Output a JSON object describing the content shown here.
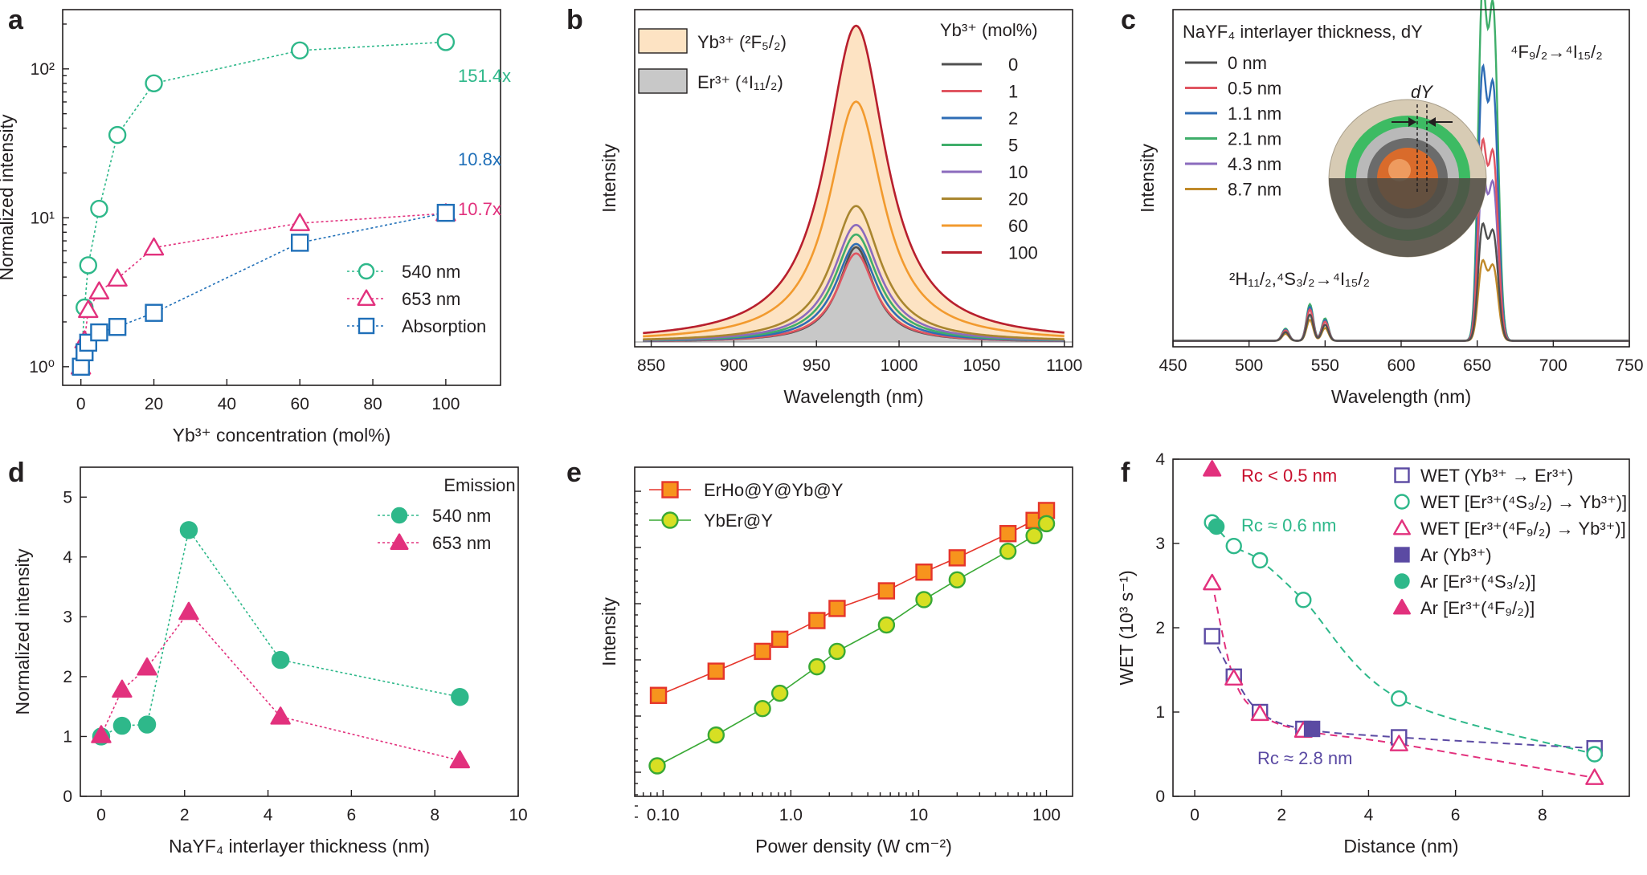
{
  "panels": {
    "a": {
      "label": "a"
    },
    "b": {
      "label": "b"
    },
    "c": {
      "label": "c"
    },
    "d": {
      "label": "d"
    },
    "e": {
      "label": "e"
    },
    "f": {
      "label": "f"
    }
  },
  "colors": {
    "green": "#2eb88a",
    "pink": "#e2317d",
    "blue": "#1f6fb8",
    "purple": "#5b4aa3",
    "orange_fill": "#fde3c3",
    "gray_fill": "#c8c8c8",
    "e_square": "#f7941d",
    "e_square_edge": "#e5352b",
    "e_circle": "#d7df23",
    "e_circle_edge": "#39a935"
  },
  "chart_data": [
    {
      "id": "a",
      "type": "scatter",
      "xlabel": "Yb³⁺ concentration (mol%)",
      "ylabel": "Normalized intensity",
      "xlim": [
        -5,
        115
      ],
      "ylim_log": [
        0.75,
        250
      ],
      "log_y": true,
      "x_ticks": [
        0,
        20,
        40,
        60,
        80,
        100
      ],
      "y_ticks": [
        {
          "value": 1,
          "label": "10⁰"
        },
        {
          "value": 10,
          "label": "10¹"
        },
        {
          "value": 100,
          "label": "10²"
        }
      ],
      "series": [
        {
          "name": "540 nm",
          "marker": "circle",
          "color": "#2eb88a",
          "x": [
            0,
            1,
            2,
            5,
            10,
            20,
            60,
            100
          ],
          "y": [
            1.0,
            2.5,
            4.8,
            11.5,
            36,
            80,
            133,
            151.4
          ]
        },
        {
          "name": "653 nm",
          "marker": "triangle",
          "color": "#e2317d",
          "x": [
            0,
            1,
            2,
            5,
            10,
            20,
            60,
            100
          ],
          "y": [
            1.0,
            1.5,
            2.4,
            3.2,
            3.9,
            6.3,
            9.2,
            10.7
          ]
        },
        {
          "name": "Absorption",
          "marker": "square",
          "color": "#1f6fb8",
          "x": [
            0,
            1,
            2,
            5,
            10,
            20,
            60,
            100
          ],
          "y": [
            1.0,
            1.25,
            1.45,
            1.7,
            1.85,
            2.3,
            6.8,
            10.8
          ]
        }
      ],
      "annotations": [
        {
          "text": "151.4x",
          "color": "#2eb88a"
        },
        {
          "text": "10.8x",
          "color": "#1f6fb8"
        },
        {
          "text": "10.7x",
          "color": "#e2317d"
        }
      ]
    },
    {
      "id": "b",
      "type": "line",
      "xlabel": "Wavelength (nm)",
      "ylabel": "Intensity",
      "xlim": [
        840,
        1105
      ],
      "x_ticks": [
        850,
        900,
        950,
        1000,
        1050,
        1100
      ],
      "legend_title": "Yb³⁺ (mol%)",
      "fill_legend": [
        {
          "label": "Yb³⁺ (²F₅/₂)",
          "fill": "#fde3c3"
        },
        {
          "label": "Er³⁺ (⁴I₁₁/₂)",
          "fill": "#c8c8c8"
        }
      ],
      "peak_center": 974,
      "series": [
        {
          "name": "0",
          "color": "#505050",
          "peak": 0.3,
          "gamma": 13
        },
        {
          "name": "1",
          "color": "#e05561",
          "peak": 0.28,
          "gamma": 14
        },
        {
          "name": "2",
          "color": "#2f6db5",
          "peak": 0.31,
          "gamma": 15
        },
        {
          "name": "5",
          "color": "#3fae6a",
          "peak": 0.34,
          "gamma": 16
        },
        {
          "name": "10",
          "color": "#8b6bbd",
          "peak": 0.37,
          "gamma": 17
        },
        {
          "name": "20",
          "color": "#a9862f",
          "peak": 0.43,
          "gamma": 18
        },
        {
          "name": "60",
          "color": "#f29a2e",
          "peak": 0.76,
          "gamma": 20
        },
        {
          "name": "100",
          "color": "#b81f2d",
          "peak": 1.0,
          "gamma": 22
        }
      ]
    },
    {
      "id": "c",
      "type": "line",
      "xlabel": "Wavelength (nm)",
      "ylabel": "Intensity",
      "xlim": [
        450,
        750
      ],
      "x_ticks": [
        450,
        500,
        550,
        600,
        650,
        700,
        750
      ],
      "legend_title": "NaYF₄ interlayer thickness, dY",
      "peak_labels": [
        "⁴F₉/₂→⁴I₁₅/₂",
        "²H₁₁/₂,⁴S₃/₂→⁴I₁₅/₂"
      ],
      "inset_label": "dY",
      "series": [
        {
          "name": "0 nm",
          "color": "#505050",
          "red": 0.32,
          "green": 0.1
        },
        {
          "name": "0.5 nm",
          "color": "#e05561",
          "red": 0.55,
          "green": 0.12
        },
        {
          "name": "1.1 nm",
          "color": "#2f6db5",
          "red": 0.75,
          "green": 0.13
        },
        {
          "name": "2.1 nm",
          "color": "#3fae6a",
          "red": 0.98,
          "green": 0.14
        },
        {
          "name": "4.3 nm",
          "color": "#8b6bbd",
          "red": 0.46,
          "green": 0.12
        },
        {
          "name": "8.7 nm",
          "color": "#c08a2a",
          "red": 0.22,
          "green": 0.08
        }
      ]
    },
    {
      "id": "d",
      "type": "scatter",
      "xlabel": "NaYF₄ interlayer thickness (nm)",
      "ylabel": "Normalized intensity",
      "xlim": [
        -0.5,
        10
      ],
      "ylim": [
        0,
        5.5
      ],
      "x_ticks": [
        0,
        2,
        4,
        6,
        8,
        10
      ],
      "y_ticks": [
        0,
        1,
        2,
        3,
        4,
        5
      ],
      "legend_title": "Emission",
      "series": [
        {
          "name": "540 nm",
          "marker": "circle",
          "color": "#2eb88a",
          "x": [
            0,
            0.5,
            1.1,
            2.1,
            4.3,
            8.6
          ],
          "y": [
            1.0,
            1.18,
            1.2,
            4.45,
            2.28,
            1.66
          ]
        },
        {
          "name": "653 nm",
          "marker": "triangle",
          "color": "#e2317d",
          "x": [
            0,
            0.5,
            1.1,
            2.1,
            4.3,
            8.6
          ],
          "y": [
            1.02,
            1.78,
            2.15,
            3.08,
            1.33,
            0.6
          ]
        }
      ]
    },
    {
      "id": "e",
      "type": "line",
      "xlabel": "Power density (W cm⁻²)",
      "ylabel": "Intensity",
      "log_x": true,
      "xlim": [
        0.06,
        160
      ],
      "log_y_relative": true,
      "x_ticks": [
        {
          "value": 0.1,
          "label": "0.10"
        },
        {
          "value": 1,
          "label": "1.0"
        },
        {
          "value": 10,
          "label": "10"
        },
        {
          "value": 100,
          "label": "100"
        }
      ],
      "series": [
        {
          "name": "ErHo@Y@Yb@Y",
          "marker": "square",
          "color": "#f7941d",
          "x": [
            0.092,
            0.26,
            0.6,
            0.82,
            1.6,
            2.3,
            5.6,
            11,
            20,
            50,
            80,
            100
          ],
          "y": [
            4.2,
            5.3,
            6.2,
            6.75,
            7.6,
            8.15,
            8.95,
            9.8,
            10.45,
            11.55,
            12.15,
            12.6
          ]
        },
        {
          "name": "YbEr@Y",
          "marker": "circle",
          "color": "#d7df23",
          "x": [
            0.09,
            0.26,
            0.6,
            0.82,
            1.6,
            2.3,
            5.6,
            11,
            20,
            50,
            80,
            100
          ],
          "y": [
            1.0,
            2.4,
            3.6,
            4.3,
            5.5,
            6.2,
            7.4,
            8.55,
            9.45,
            10.75,
            11.45,
            12.0
          ]
        }
      ]
    },
    {
      "id": "f",
      "type": "scatter",
      "xlabel": "Distance (nm)",
      "ylabel": "WET (10³ s⁻¹)",
      "xlim": [
        -0.5,
        10
      ],
      "ylim": [
        0,
        4
      ],
      "x_ticks": [
        0,
        2,
        4,
        6,
        8
      ],
      "y_ticks": [
        0,
        1,
        2,
        3,
        4
      ],
      "series": [
        {
          "name": "WET (Yb³⁺ → Er³⁺)",
          "marker": "square-open",
          "color": "#5b4aa3",
          "x": [
            0.4,
            0.9,
            1.5,
            2.5,
            4.7,
            9.2
          ],
          "y": [
            1.9,
            1.42,
            1.0,
            0.8,
            0.7,
            0.57
          ]
        },
        {
          "name": "WET [Er³⁺(⁴S₃/₂) → Yb³⁺)]",
          "marker": "circle-open",
          "color": "#2eb88a",
          "x": [
            0.4,
            0.9,
            1.5,
            2.5,
            4.7,
            9.2
          ],
          "y": [
            3.25,
            2.97,
            2.8,
            2.33,
            1.16,
            0.5
          ]
        },
        {
          "name": "WET [Er³⁺(⁴F₉/₂) → Yb³⁺)]",
          "marker": "triangle-open",
          "color": "#e2317d",
          "x": [
            0.4,
            0.9,
            1.5,
            2.5,
            4.7,
            9.2
          ],
          "y": [
            2.53,
            1.4,
            0.98,
            0.78,
            0.62,
            0.22
          ]
        },
        {
          "name": "Ar (Yb³⁺)",
          "marker": "square-filled",
          "color": "#5b4aa3",
          "x": [
            2.7
          ],
          "y": [
            0.8
          ]
        },
        {
          "name": "Ar [Er³⁺(⁴S₃/₂)]",
          "marker": "circle-filled",
          "color": "#2eb88a",
          "x": [
            0.5
          ],
          "y": [
            3.2
          ]
        },
        {
          "name": "Ar [Er³⁺(⁴F₉/₂)]",
          "marker": "triangle-filled",
          "color": "#e2317d",
          "x": [
            0.4
          ],
          "y": [
            3.88
          ]
        }
      ],
      "annotations": [
        {
          "text": "Rc < 0.5 nm",
          "color": "#c8102e"
        },
        {
          "text": "Rc ≈ 0.6 nm",
          "color": "#2eb88a"
        },
        {
          "text": "Rc ≈ 2.8 nm",
          "color": "#5b4aa3"
        }
      ]
    }
  ]
}
